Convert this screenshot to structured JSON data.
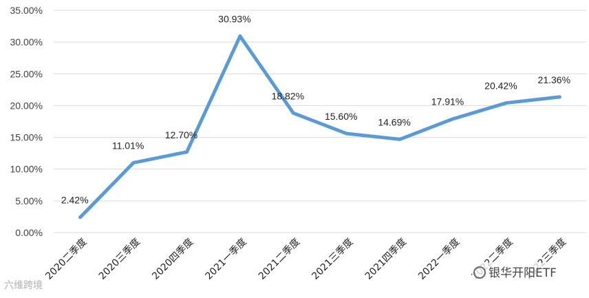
{
  "chart_data": {
    "type": "line",
    "categories": [
      "2020二季度",
      "2020三季度",
      "2020四季度",
      "2021一季度",
      "2021二季度",
      "2021三季度",
      "2021四季度",
      "2022一季度",
      "2022二季度",
      "2022三季度"
    ],
    "series": [
      {
        "values": [
          2.42,
          11.01,
          12.7,
          30.93,
          18.82,
          15.6,
          14.69,
          17.91,
          20.42,
          21.36
        ],
        "labels": [
          "2.42%",
          "11.01%",
          "12.70%",
          "30.93%",
          "18.82%",
          "15.60%",
          "14.69%",
          "17.91%",
          "20.42%",
          "21.36%"
        ],
        "color": "#5b9bd5"
      }
    ],
    "yticks": [
      "0.00%",
      "5.00%",
      "10.00%",
      "15.00%",
      "20.00%",
      "25.00%",
      "30.00%",
      "35.00%"
    ],
    "ylim": [
      0,
      35
    ],
    "grid": true,
    "gridColor": "#d9d9d9"
  },
  "watermarks": {
    "left": "六维跨境",
    "right": "银华开阳ETF"
  }
}
